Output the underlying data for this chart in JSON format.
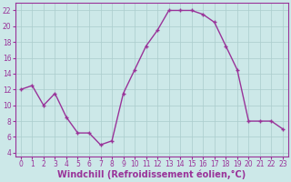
{
  "x": [
    0,
    1,
    2,
    3,
    4,
    5,
    6,
    7,
    8,
    9,
    10,
    11,
    12,
    13,
    14,
    15,
    16,
    17,
    18,
    19,
    20,
    21,
    22,
    23
  ],
  "y": [
    12,
    12.5,
    10,
    11.5,
    8.5,
    6.5,
    6.5,
    5,
    5.5,
    11.5,
    14.5,
    17.5,
    19.5,
    22,
    22,
    22,
    21.5,
    20.5,
    17.5,
    14.5,
    8,
    8,
    8,
    7
  ],
  "line_color": "#993399",
  "marker": "+",
  "bg_color": "#cce8e8",
  "grid_color": "#aacccc",
  "title": "Windchill (Refroidissement éolien,°C)",
  "xlim": [
    -0.5,
    23.5
  ],
  "ylim": [
    3.5,
    23
  ],
  "yticks": [
    4,
    6,
    8,
    10,
    12,
    14,
    16,
    18,
    20,
    22
  ],
  "xticks": [
    0,
    1,
    2,
    3,
    4,
    5,
    6,
    7,
    8,
    9,
    10,
    11,
    12,
    13,
    14,
    15,
    16,
    17,
    18,
    19,
    20,
    21,
    22,
    23
  ],
  "tick_label_color": "#993399",
  "tick_label_size": 5.5,
  "xlabel_size": 7.0,
  "axis_color": "#993399",
  "linewidth": 1.0,
  "markersize": 3.5,
  "markeredgewidth": 1.0
}
